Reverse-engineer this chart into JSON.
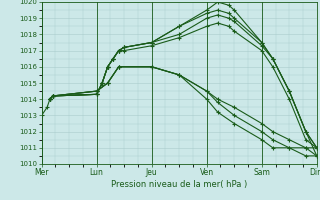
{
  "xlabel": "Pression niveau de la mer( hPa )",
  "bg_color": "#cce8e8",
  "grid_color": "#aacccc",
  "line_color": "#1a5c1a",
  "ylim": [
    1010,
    1020
  ],
  "yticks": [
    1010,
    1011,
    1012,
    1013,
    1014,
    1015,
    1016,
    1017,
    1018,
    1019,
    1020
  ],
  "day_labels": [
    "Mer",
    "Lun",
    "Jeu",
    "Ven",
    "Sam",
    "Dim"
  ],
  "day_positions": [
    0,
    1,
    2,
    3,
    4,
    5
  ],
  "xlim": [
    0,
    5
  ],
  "series": [
    {
      "x": [
        0.0,
        0.1,
        0.15,
        0.2,
        1.0,
        1.1,
        1.2,
        1.3,
        1.4,
        1.5,
        2.0,
        2.5,
        3.0,
        3.2,
        3.4,
        3.5,
        4.0,
        4.2,
        4.5,
        4.8,
        5.0
      ],
      "y": [
        1013.0,
        1013.5,
        1014.0,
        1014.2,
        1014.3,
        1015.0,
        1016.0,
        1016.5,
        1017.0,
        1017.2,
        1017.5,
        1018.5,
        1019.5,
        1020.0,
        1019.8,
        1019.5,
        1017.5,
        1016.5,
        1014.5,
        1012.0,
        1010.5
      ]
    },
    {
      "x": [
        0.15,
        0.2,
        1.0,
        1.1,
        1.2,
        1.3,
        1.4,
        1.5,
        2.0,
        2.5,
        3.0,
        3.2,
        3.4,
        3.5,
        4.0,
        4.2,
        4.5,
        4.8,
        5.0
      ],
      "y": [
        1014.0,
        1014.2,
        1014.3,
        1015.0,
        1016.0,
        1016.5,
        1017.0,
        1017.2,
        1017.5,
        1018.5,
        1019.3,
        1019.5,
        1019.3,
        1019.0,
        1017.5,
        1016.5,
        1014.5,
        1012.0,
        1011.0
      ]
    },
    {
      "x": [
        0.15,
        0.2,
        1.0,
        1.1,
        1.2,
        1.3,
        1.4,
        1.5,
        2.0,
        2.5,
        3.0,
        3.2,
        3.4,
        3.5,
        4.0,
        4.2,
        4.5,
        4.8,
        5.0
      ],
      "y": [
        1014.0,
        1014.2,
        1014.3,
        1015.0,
        1016.0,
        1016.5,
        1017.0,
        1017.2,
        1017.5,
        1018.0,
        1019.0,
        1019.2,
        1019.0,
        1018.8,
        1017.3,
        1016.5,
        1014.5,
        1012.0,
        1011.0
      ]
    },
    {
      "x": [
        0.15,
        0.2,
        1.0,
        1.1,
        1.2,
        1.3,
        1.4,
        1.5,
        2.0,
        2.5,
        3.0,
        3.2,
        3.4,
        3.5,
        4.0,
        4.2,
        4.5,
        4.8,
        5.0
      ],
      "y": [
        1014.0,
        1014.2,
        1014.3,
        1015.0,
        1016.0,
        1016.5,
        1017.0,
        1017.0,
        1017.3,
        1017.8,
        1018.5,
        1018.7,
        1018.5,
        1018.2,
        1017.0,
        1016.0,
        1014.0,
        1011.5,
        1011.0
      ]
    },
    {
      "x": [
        0.15,
        0.2,
        1.0,
        1.2,
        1.4,
        2.0,
        2.5,
        3.0,
        3.2,
        3.5,
        4.0,
        4.2,
        4.5,
        4.8,
        5.0
      ],
      "y": [
        1014.0,
        1014.2,
        1014.5,
        1015.0,
        1016.0,
        1016.0,
        1015.5,
        1014.5,
        1014.0,
        1013.5,
        1012.5,
        1012.0,
        1011.5,
        1011.0,
        1011.0
      ]
    },
    {
      "x": [
        0.15,
        0.2,
        1.0,
        1.2,
        1.4,
        2.0,
        2.5,
        3.0,
        3.2,
        3.5,
        4.0,
        4.2,
        4.5,
        4.8,
        5.0
      ],
      "y": [
        1014.0,
        1014.2,
        1014.5,
        1015.0,
        1016.0,
        1016.0,
        1015.5,
        1014.5,
        1013.8,
        1013.0,
        1012.0,
        1011.5,
        1011.0,
        1011.0,
        1010.5
      ]
    },
    {
      "x": [
        0.15,
        0.2,
        1.0,
        1.2,
        1.4,
        2.0,
        2.5,
        3.0,
        3.2,
        3.5,
        4.0,
        4.2,
        4.5,
        4.8,
        5.0
      ],
      "y": [
        1014.0,
        1014.2,
        1014.5,
        1015.0,
        1016.0,
        1016.0,
        1015.5,
        1014.0,
        1013.2,
        1012.5,
        1011.5,
        1011.0,
        1011.0,
        1010.5,
        1010.5
      ]
    }
  ]
}
